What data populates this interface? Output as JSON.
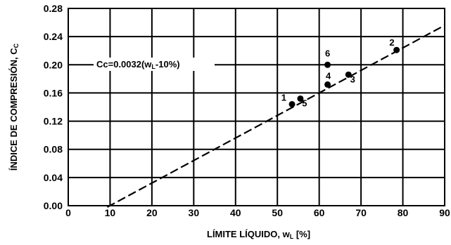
{
  "chart_data": {
    "type": "scatter",
    "title": "",
    "xlabel_main": "LÍMITE  LÍQUIDO, w",
    "xlabel_sub": "L",
    "xlabel_tail": " [%]",
    "ylabel_main": "ÍNDICE DE COMPRESIÓN, C",
    "ylabel_sub": "C",
    "xlim": [
      0,
      90
    ],
    "ylim": [
      0,
      0.28
    ],
    "xticks": [
      "0",
      "10",
      "20",
      "30",
      "40",
      "50",
      "60",
      "70",
      "80",
      "90"
    ],
    "yticks": [
      "0.00",
      "0.04",
      "0.08",
      "0.12",
      "0.16",
      "0.20",
      "0.24",
      "0.28"
    ],
    "grid": true,
    "points": [
      {
        "label": "1",
        "x": 53.5,
        "y": 0.144
      },
      {
        "label": "2",
        "x": 78.5,
        "y": 0.221
      },
      {
        "label": "3",
        "x": 67.0,
        "y": 0.186
      },
      {
        "label": "4",
        "x": 62.0,
        "y": 0.172
      },
      {
        "label": "5",
        "x": 55.5,
        "y": 0.152
      },
      {
        "label": "6",
        "x": 62.0,
        "y": 0.2
      }
    ],
    "fit_line": {
      "style": "dashed",
      "slope": 0.0032,
      "intercept_x": 10,
      "equation_main": "Cc=0.0032(w",
      "equation_sub": "L",
      "equation_tail": "-10%)"
    }
  }
}
